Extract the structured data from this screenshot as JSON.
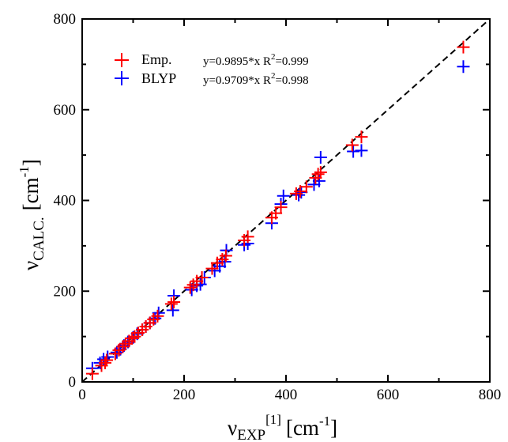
{
  "chart_data": {
    "type": "scatter",
    "title": "",
    "xlabel": {
      "base": "ν",
      "sub": "EXP",
      "sup": "[1]",
      "unit": "[cm",
      "unit_exp": "-1",
      "unit_close": "]"
    },
    "ylabel": {
      "base": "ν",
      "sub": "CALC.",
      "unit": "[cm",
      "unit_exp": "-1",
      "unit_close": "]"
    },
    "xlim": [
      0,
      800
    ],
    "ylim": [
      0,
      800
    ],
    "xticks": [
      0,
      200,
      400,
      600,
      800
    ],
    "yticks": [
      0,
      200,
      400,
      600,
      800
    ],
    "xtick_labels": [
      "0",
      "200",
      "400",
      "600",
      "800"
    ],
    "ytick_labels": [
      "0",
      "200",
      "400",
      "600",
      "800"
    ],
    "grid": false,
    "legend_position": "top-left",
    "reference_line": {
      "style": "dashed",
      "color": "#000000",
      "slope": 1
    },
    "series": [
      {
        "name": "Emp.",
        "color": "#ff0000",
        "marker": "plus",
        "equation": "y=0.9895*x R",
        "equation_sup": "2",
        "equation_end": "=0.999",
        "x": [
          20,
          38,
          45,
          48,
          65,
          72,
          80,
          85,
          92,
          98,
          103,
          110,
          118,
          125,
          133,
          140,
          148,
          175,
          180,
          212,
          218,
          225,
          235,
          255,
          265,
          275,
          282,
          318,
          325,
          372,
          380,
          390,
          420,
          428,
          440,
          458,
          463,
          468,
          530,
          548,
          748
        ],
        "y": [
          18,
          36,
          42,
          48,
          62,
          70,
          78,
          84,
          90,
          96,
          100,
          108,
          115,
          122,
          130,
          138,
          145,
          172,
          176,
          208,
          214,
          222,
          230,
          250,
          262,
          270,
          278,
          312,
          320,
          362,
          372,
          385,
          415,
          420,
          430,
          450,
          458,
          462,
          522,
          540,
          738
        ]
      },
      {
        "name": "BLYP",
        "color": "#0000ff",
        "marker": "plus",
        "equation": "y=0.9709*x R",
        "equation_sup": "2",
        "equation_end": "=0.998",
        "x": [
          20,
          35,
          42,
          50,
          68,
          75,
          82,
          90,
          100,
          108,
          118,
          125,
          133,
          143,
          150,
          178,
          180,
          215,
          225,
          232,
          240,
          260,
          270,
          280,
          283,
          318,
          325,
          372,
          390,
          395,
          425,
          430,
          455,
          465,
          468,
          532,
          548,
          748
        ],
        "y": [
          30,
          42,
          50,
          55,
          65,
          72,
          80,
          88,
          98,
          106,
          115,
          122,
          130,
          140,
          152,
          158,
          190,
          203,
          212,
          215,
          230,
          245,
          255,
          265,
          290,
          302,
          305,
          350,
          392,
          410,
          412,
          418,
          435,
          443,
          495,
          508,
          510,
          695
        ]
      }
    ]
  }
}
